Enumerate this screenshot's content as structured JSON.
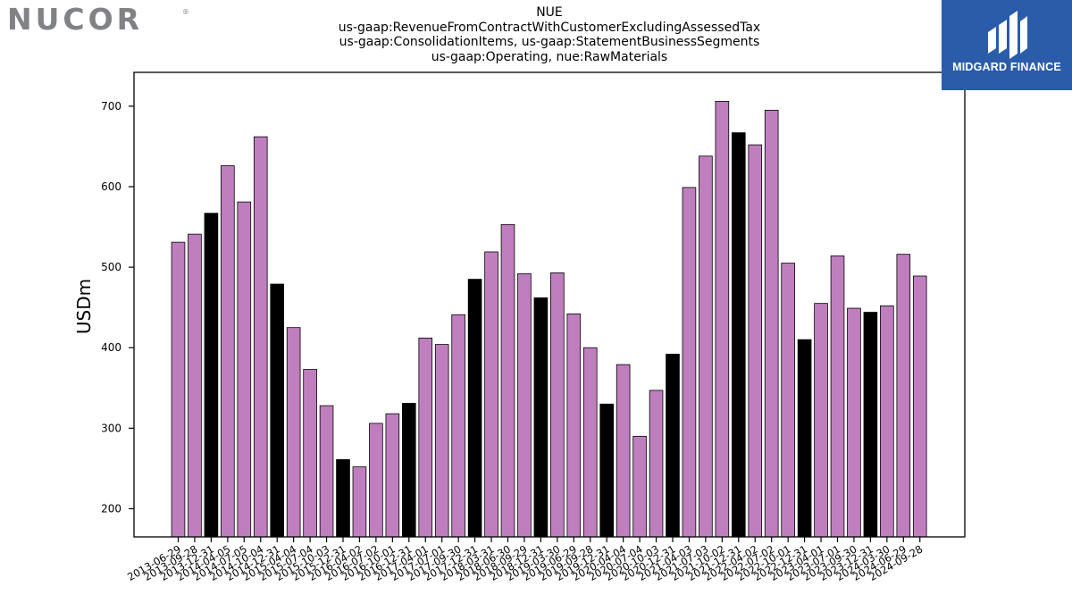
{
  "brand": {
    "name": "NUCOR",
    "mark": "®"
  },
  "partner": {
    "name": "MIDGARD FINANCE"
  },
  "colors": {
    "series": "#bf7fbf",
    "highlight": "#000000",
    "edge": "#000000",
    "brand_gray": "#808285",
    "partner_bg": "#2a5caa"
  },
  "chart_data": {
    "type": "bar",
    "title_lines": [
      "NUE",
      "us-gaap:RevenueFromContractWithCustomerExcludingAssessedTax",
      "us-gaap:ConsolidationItems, us-gaap:StatementBusinessSegments",
      "us-gaap:Operating, nue:RawMaterials"
    ],
    "xlabel": "",
    "ylabel": "USDm",
    "ylim": [
      165,
      742
    ],
    "yticks": [
      200,
      300,
      400,
      500,
      600,
      700
    ],
    "grid": false,
    "categories": [
      "2013-06-29",
      "2013-09-28",
      "2013-12-31",
      "2014-04-05",
      "2014-07-05",
      "2014-10-04",
      "2014-12-31",
      "2015-04-04",
      "2015-07-04",
      "2015-10-03",
      "2015-12-31",
      "2016-04-02",
      "2016-07-02",
      "2016-10-01",
      "2016-12-31",
      "2017-04-01",
      "2017-07-01",
      "2017-09-30",
      "2017-12-31",
      "2018-03-31",
      "2018-06-30",
      "2018-09-29",
      "2018-12-31",
      "2019-03-30",
      "2019-06-29",
      "2019-09-28",
      "2019-12-31",
      "2020-04-04",
      "2020-07-04",
      "2020-10-03",
      "2020-12-31",
      "2021-04-03",
      "2021-07-03",
      "2021-10-02",
      "2021-12-31",
      "2022-04-02",
      "2022-07-02",
      "2022-10-01",
      "2022-12-31",
      "2023-04-01",
      "2023-07-01",
      "2023-09-30",
      "2023-12-31",
      "2024-03-30",
      "2024-06-29",
      "2024-09-28"
    ],
    "values": [
      531,
      541,
      567,
      626,
      581,
      662,
      479,
      425,
      373,
      328,
      261,
      252,
      306,
      318,
      331,
      412,
      404,
      441,
      485,
      519,
      553,
      492,
      462,
      493,
      442,
      400,
      330,
      379,
      290,
      347,
      392,
      599,
      638,
      706,
      667,
      652,
      695,
      505,
      410,
      455,
      514,
      449,
      444,
      452,
      516,
      489
    ],
    "highlight": [
      false,
      false,
      true,
      false,
      false,
      false,
      true,
      false,
      false,
      false,
      true,
      false,
      false,
      false,
      true,
      false,
      false,
      false,
      true,
      false,
      false,
      false,
      true,
      false,
      false,
      false,
      true,
      false,
      false,
      false,
      true,
      false,
      false,
      false,
      true,
      false,
      false,
      false,
      true,
      false,
      false,
      false,
      true,
      false,
      false,
      false
    ]
  }
}
